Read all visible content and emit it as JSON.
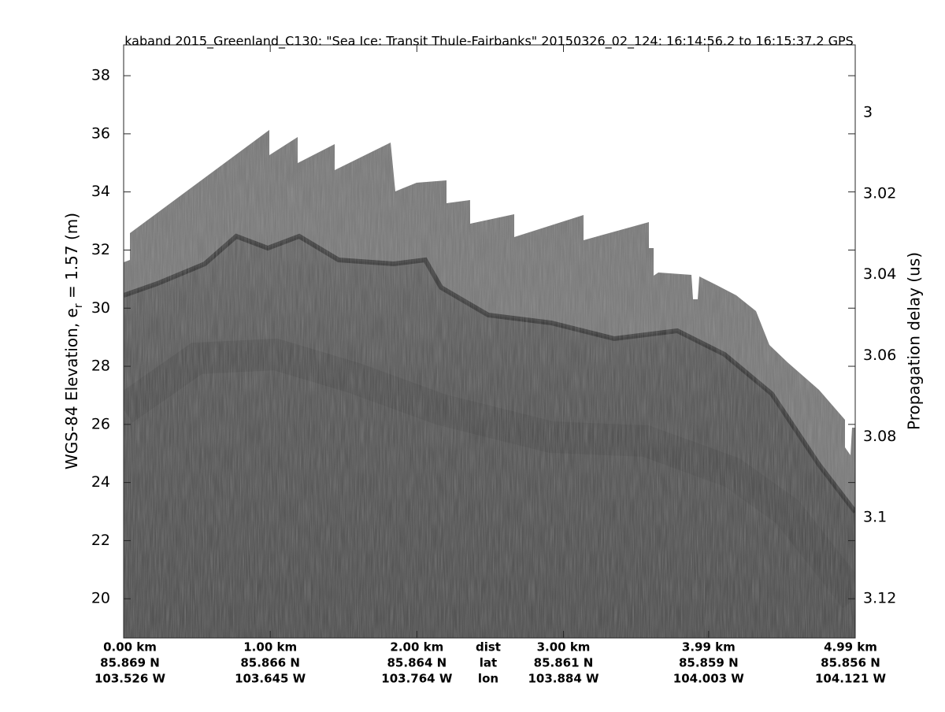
{
  "chart_data": {
    "type": "echogram",
    "title": "kaband 2015_Greenland_C130: \"Sea Ice: Transit Thule-Fairbanks\"  20150326_02_124: 16:14:56.2 to 16:15:37.2 GPS",
    "ylabel": [
      "WGS-84 Elevation, e",
      "r",
      " = 1.57 (m)"
    ],
    "y2label": "Propagation delay (us)",
    "ylim": [
      18.65,
      39.06
    ],
    "yticks": [
      20,
      22,
      24,
      26,
      28,
      30,
      32,
      34,
      36,
      38
    ],
    "y2lim": [
      3.1297,
      2.9833
    ],
    "y2ticks": [
      3,
      3.02,
      3.04,
      3.06,
      3.08,
      3.1,
      3.12
    ],
    "xlim": [
      0,
      4.99
    ],
    "xticks": [
      {
        "value": 0,
        "label": "0.00 km"
      },
      {
        "value": 1.0,
        "label": "1.00 km"
      },
      {
        "value": 2.0,
        "label": "2.00 km"
      },
      {
        "value": 3.0,
        "label": "3.00 km"
      },
      {
        "value": 3.99,
        "label": "3.99 km"
      },
      {
        "value": 4.99,
        "label": "4.99 km"
      }
    ],
    "xtick_lat": [
      "85.869 N",
      "85.866 N",
      "85.864 N",
      "85.861 N",
      "85.859 N",
      "85.856 N"
    ],
    "xtick_lon": [
      "103.526 W",
      "103.645 W",
      "103.764 W",
      "103.884 W",
      "104.003 W",
      "104.121 W"
    ],
    "xtick_row_names": [
      "dist",
      "lat",
      "lon"
    ]
  }
}
